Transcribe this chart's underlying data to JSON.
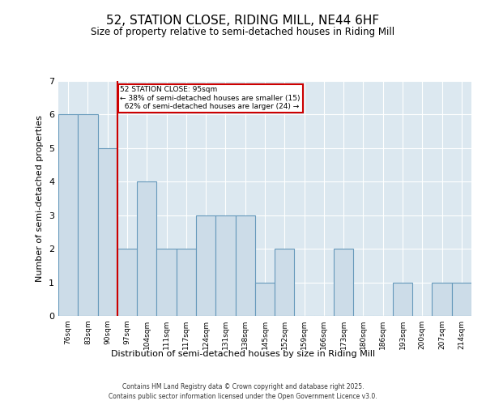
{
  "title_line1": "52, STATION CLOSE, RIDING MILL, NE44 6HF",
  "title_line2": "Size of property relative to semi-detached houses in Riding Mill",
  "xlabel": "Distribution of semi-detached houses by size in Riding Mill",
  "ylabel": "Number of semi-detached properties",
  "categories": [
    "76sqm",
    "83sqm",
    "90sqm",
    "97sqm",
    "104sqm",
    "111sqm",
    "117sqm",
    "124sqm",
    "131sqm",
    "138sqm",
    "145sqm",
    "152sqm",
    "159sqm",
    "166sqm",
    "173sqm",
    "180sqm",
    "186sqm",
    "193sqm",
    "200sqm",
    "207sqm",
    "214sqm"
  ],
  "values": [
    6,
    6,
    5,
    2,
    4,
    2,
    2,
    3,
    3,
    3,
    1,
    2,
    0,
    0,
    2,
    0,
    0,
    1,
    0,
    1,
    1
  ],
  "bar_color": "#ccdce8",
  "bar_edge_color": "#6699bb",
  "subject_sqm": "95sqm",
  "subject_label": "52 STATION CLOSE: 95sqm",
  "smaller_pct": "38%",
  "smaller_count": 15,
  "larger_pct": "62%",
  "larger_count": 24,
  "annotation_box_color": "#cc0000",
  "subject_line_color": "#cc0000",
  "ylim": [
    0,
    7
  ],
  "yticks": [
    0,
    1,
    2,
    3,
    4,
    5,
    6,
    7
  ],
  "background_color": "#dce8f0",
  "footer_line1": "Contains HM Land Registry data © Crown copyright and database right 2025.",
  "footer_line2": "Contains public sector information licensed under the Open Government Licence v3.0."
}
